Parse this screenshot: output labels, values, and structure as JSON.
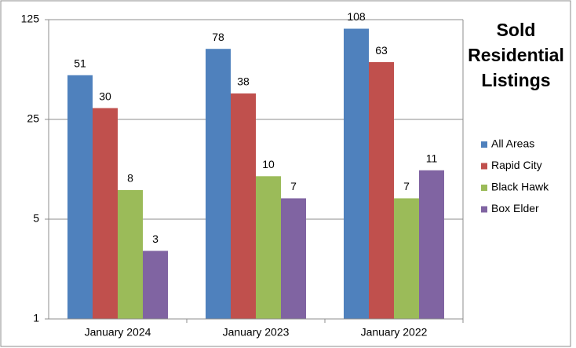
{
  "chart_data": {
    "type": "bar",
    "title": "Sold Residential Listings",
    "categories": [
      "January 2024",
      "January 2023",
      "January 2022"
    ],
    "series": [
      {
        "name": "All Areas",
        "color": "#4f81bd",
        "values": [
          51,
          78,
          108
        ]
      },
      {
        "name": "Rapid City",
        "color": "#c0504d",
        "values": [
          30,
          38,
          63
        ]
      },
      {
        "name": "Black Hawk",
        "color": "#9bbb59",
        "values": [
          8,
          10,
          7
        ]
      },
      {
        "name": "Box Elder",
        "color": "#8064a2",
        "values": [
          3,
          7,
          11
        ]
      }
    ],
    "ylim": [
      1,
      125
    ],
    "yticks": [
      1,
      5,
      25,
      125
    ],
    "log_scale": true,
    "grid": true,
    "legend": "right"
  }
}
